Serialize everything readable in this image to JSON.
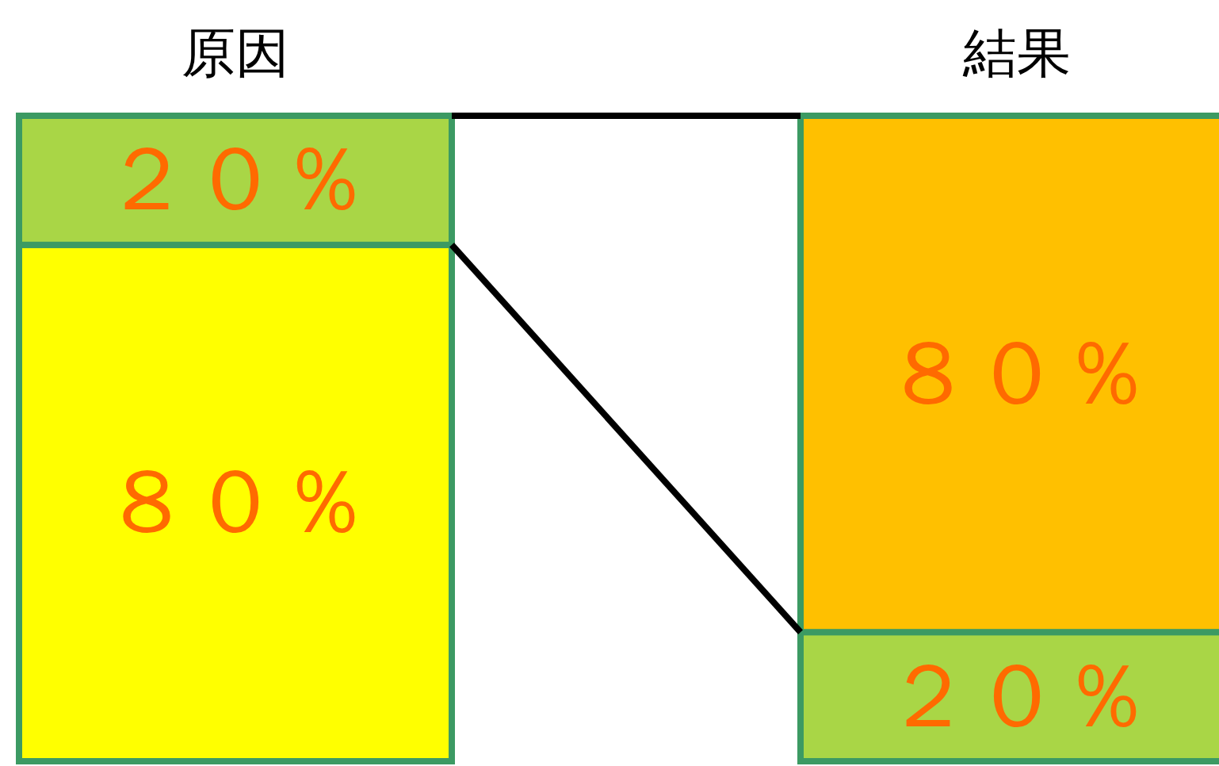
{
  "chart_data": {
    "type": "bar",
    "stacked": true,
    "categories": [
      "原因",
      "結果"
    ],
    "series": [
      {
        "values": [
          80,
          20
        ],
        "colors": [
          "#ffff00",
          "#a9d646"
        ],
        "value_labels": [
          "８０％",
          "２０％"
        ]
      },
      {
        "values": [
          20,
          80
        ],
        "colors": [
          "#a9d646",
          "#ffc000"
        ],
        "value_labels": [
          "２０％",
          "８０％"
        ]
      }
    ]
  }
}
